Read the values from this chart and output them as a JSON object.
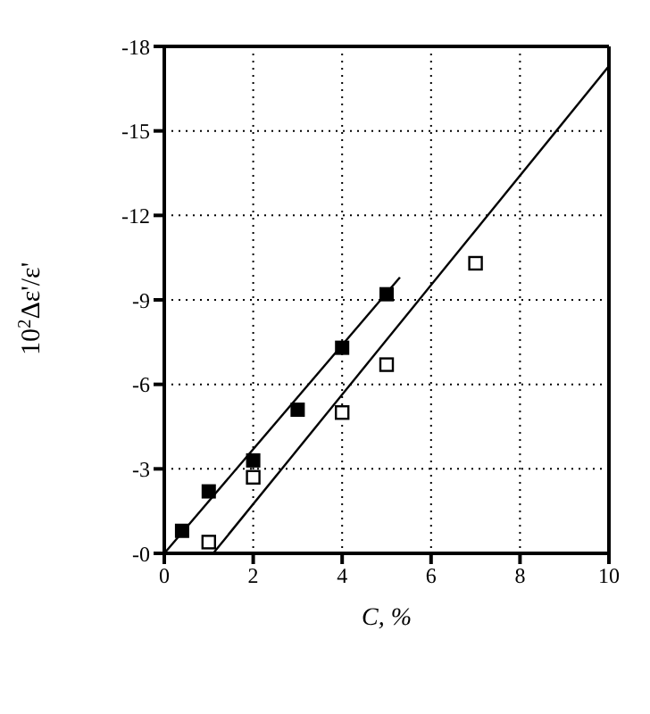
{
  "chart_data": {
    "type": "scatter",
    "xlabel": "C, %",
    "ylabel": "10$^{2}$Δε'/ε'",
    "xlim": [
      0,
      10
    ],
    "xticks": [
      0,
      2,
      4,
      6,
      8,
      10
    ],
    "ylim": [
      0,
      -18
    ],
    "yticks": [
      {
        "value": 0,
        "label": "-0"
      },
      -3,
      -6,
      -9,
      -12,
      -15,
      -18
    ],
    "grid": true,
    "marker": "square",
    "series": [
      {
        "color": "#000000",
        "x": [
          0.4,
          1,
          2,
          3,
          4,
          5
        ],
        "values": [
          -0.8,
          -2.2,
          -3.3,
          -5.1,
          -7.3,
          -9.2
        ]
      },
      {
        "color": "#000000",
        "marker": "square-open",
        "x": [
          1,
          2,
          4,
          5,
          7
        ],
        "values": [
          -0.4,
          -2.7,
          -5.0,
          -6.7,
          -10.3
        ]
      },
      {
        "type": "line",
        "color": "#000000",
        "marker": "none",
        "x": [
          0,
          5.3
        ],
        "values": [
          0,
          -9.8
        ]
      },
      {
        "type": "line",
        "color": "#000000",
        "marker": "none",
        "x": [
          1.1,
          10
        ],
        "values": [
          0,
          -17.3
        ]
      }
    ]
  }
}
